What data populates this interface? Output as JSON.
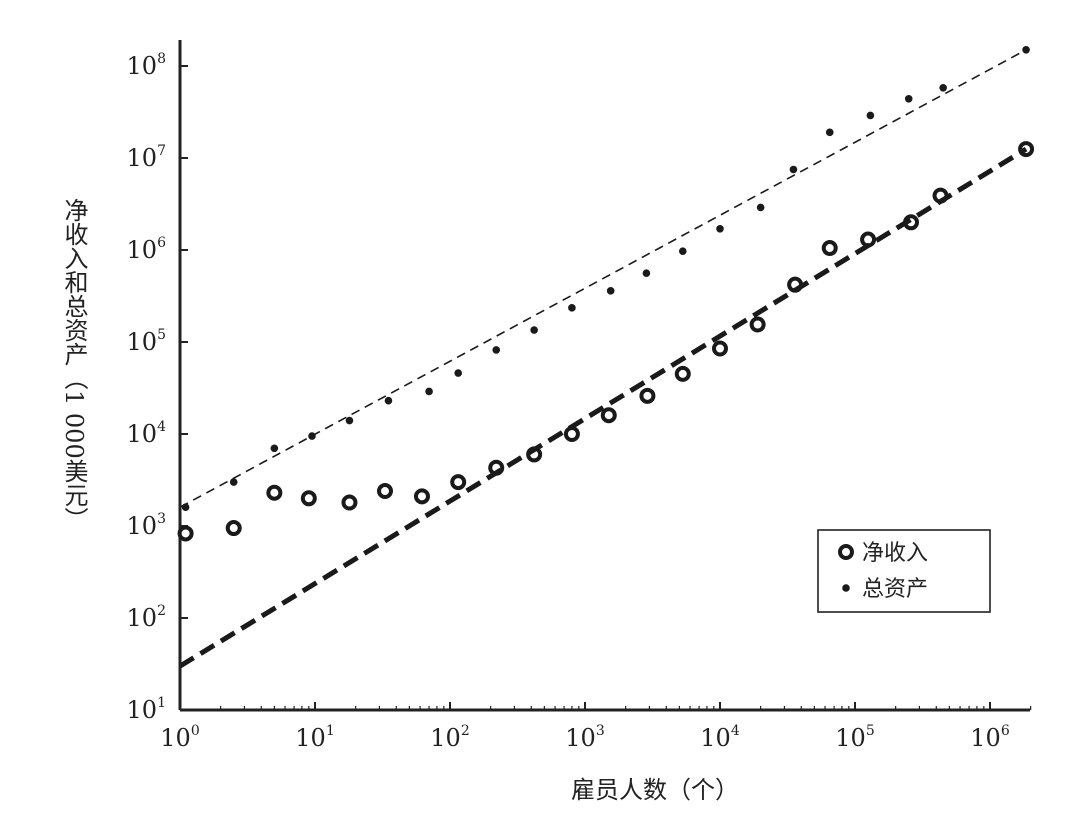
{
  "chart_data": {
    "type": "scatter",
    "title": "",
    "xlabel": "雇员人数（个）",
    "ylabel": "净收入和总资产（1 000美元）",
    "x_scale": "log",
    "y_scale": "log",
    "xlim": [
      1,
      2000000
    ],
    "ylim": [
      10,
      180000000
    ],
    "x_ticks": [
      {
        "base": "10",
        "exp": "0",
        "value": 1
      },
      {
        "base": "10",
        "exp": "1",
        "value": 10
      },
      {
        "base": "10",
        "exp": "2",
        "value": 100
      },
      {
        "base": "10",
        "exp": "3",
        "value": 1000
      },
      {
        "base": "10",
        "exp": "4",
        "value": 10000
      },
      {
        "base": "10",
        "exp": "5",
        "value": 100000
      },
      {
        "base": "10",
        "exp": "6",
        "value": 1000000
      }
    ],
    "y_ticks": [
      {
        "base": "10",
        "exp": "1",
        "value": 10
      },
      {
        "base": "10",
        "exp": "2",
        "value": 100
      },
      {
        "base": "10",
        "exp": "3",
        "value": 1000
      },
      {
        "base": "10",
        "exp": "4",
        "value": 10000
      },
      {
        "base": "10",
        "exp": "5",
        "value": 100000
      },
      {
        "base": "10",
        "exp": "6",
        "value": 1000000
      },
      {
        "base": "10",
        "exp": "7",
        "value": 10000000
      },
      {
        "base": "10",
        "exp": "8",
        "value": 100000000
      }
    ],
    "grid": false,
    "legend_position": "bottom-right",
    "series": [
      {
        "name": "净收入",
        "marker": "open-circle",
        "color": "#1a1a1a",
        "x": [
          1.1,
          2.5,
          5,
          9,
          18,
          33,
          62,
          115,
          220,
          420,
          800,
          1500,
          2900,
          5300,
          10000,
          19000,
          36000,
          65000,
          125000,
          260000,
          430000,
          1850000
        ],
        "y": [
          830,
          950,
          2300,
          2000,
          1800,
          2400,
          2100,
          3000,
          4300,
          6000,
          10000,
          16000,
          26000,
          45000,
          85000,
          155000,
          420000,
          1050000,
          1300000,
          2000000,
          3900000,
          12500000
        ]
      },
      {
        "name": "总资产",
        "marker": "dot",
        "color": "#1a1a1a",
        "x": [
          1.1,
          2.5,
          5,
          9.5,
          18,
          35,
          70,
          115,
          220,
          420,
          800,
          1550,
          2850,
          5300,
          10000,
          20000,
          35000,
          65000,
          130000,
          250000,
          450000,
          1850000
        ],
        "y": [
          1600,
          3000,
          7000,
          9500,
          14000,
          23000,
          29000,
          46000,
          82000,
          135000,
          235000,
          360000,
          560000,
          970000,
          1700000,
          2900000,
          7500000,
          19000000,
          29000000,
          44000000,
          58000000,
          150000000
        ]
      }
    ],
    "fit_lines": [
      {
        "series": "总资产",
        "style": "thin-dashed",
        "x": [
          1,
          1850000
        ],
        "y": [
          1600,
          150000000
        ]
      },
      {
        "series": "净收入",
        "style": "thick-dashed",
        "x": [
          1,
          1850000
        ],
        "y": [
          30,
          12500000
        ]
      }
    ]
  }
}
